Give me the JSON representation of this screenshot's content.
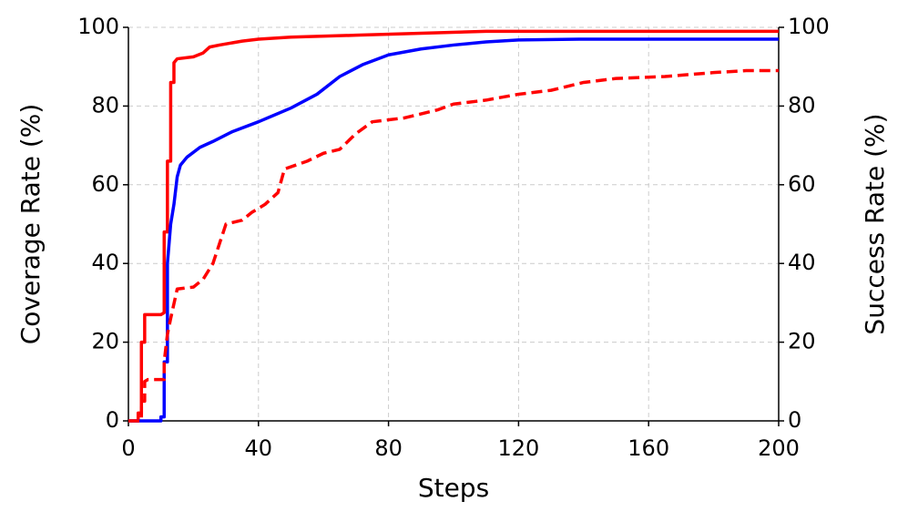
{
  "chart_data": {
    "type": "line",
    "xlabel": "Steps",
    "ylabel": "Coverage Rate (%)",
    "y2label": "Success Rate (%)",
    "xlim": [
      0,
      200
    ],
    "xticks": [
      0,
      40,
      80,
      120,
      160,
      200
    ],
    "ylim": [
      0,
      100
    ],
    "yticks": [
      0,
      20,
      40,
      60,
      80,
      100
    ],
    "y2lim": [
      0,
      100
    ],
    "y2ticks": [
      0,
      20,
      40,
      60,
      80,
      100
    ],
    "grid": true,
    "series": [
      {
        "color": "#ff0000",
        "linestyle": "solid",
        "axis": "y",
        "x": [
          0,
          3,
          3,
          4,
          4,
          5,
          5,
          10,
          11,
          11,
          12,
          12,
          13,
          13,
          14,
          14,
          15,
          20,
          23,
          25,
          28,
          35,
          40,
          50,
          70,
          90,
          110,
          200
        ],
        "values": [
          0,
          0,
          2,
          2,
          20,
          20,
          27,
          27,
          27.5,
          48,
          48,
          66,
          66,
          86,
          86,
          91,
          92,
          92.5,
          93.5,
          95,
          95.5,
          96.5,
          97,
          97.5,
          98,
          98.5,
          99,
          99
        ]
      },
      {
        "color": "#0000ff",
        "linestyle": "solid",
        "axis": "y",
        "x": [
          0,
          10,
          10,
          11,
          11,
          12,
          12,
          13,
          14,
          15,
          16,
          18,
          22,
          26,
          32,
          40,
          50,
          58,
          65,
          72,
          80,
          90,
          100,
          110,
          120,
          140,
          200
        ],
        "values": [
          0,
          0,
          1,
          1,
          15,
          15,
          40,
          50,
          55,
          62,
          65,
          67,
          69.5,
          71,
          73.5,
          76,
          79.5,
          83,
          87.5,
          90.5,
          93,
          94.5,
          95.5,
          96.3,
          96.8,
          97,
          97
        ]
      },
      {
        "color": "#ff0000",
        "linestyle": "dashed",
        "axis": "y2",
        "x": [
          0,
          4,
          4,
          5,
          5,
          6,
          11,
          11,
          12,
          13,
          15,
          20,
          23,
          26,
          28,
          30,
          35,
          38,
          42,
          46,
          48,
          55,
          60,
          65,
          70,
          75,
          85,
          95,
          100,
          110,
          120,
          130,
          140,
          150,
          165,
          180,
          190,
          200
        ],
        "values": [
          0,
          0,
          5,
          5,
          10,
          10.5,
          10.5,
          15,
          22,
          26,
          33.5,
          34,
          36,
          40,
          45,
          50,
          51,
          53,
          55,
          58,
          64,
          66,
          68,
          69,
          73,
          76,
          77,
          79,
          80.5,
          81.5,
          83,
          84,
          86,
          87,
          87.5,
          88.5,
          89,
          89
        ]
      }
    ]
  }
}
